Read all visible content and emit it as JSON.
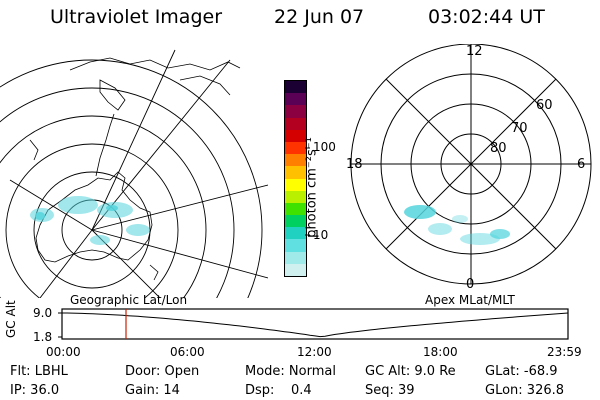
{
  "header": {
    "instrument": "Ultraviolet Imager",
    "date": "22 Jun 07",
    "time": "03:02:44 UT"
  },
  "colorbar": {
    "unit_label": "photon cm⁻²s⁻¹",
    "ticks": [
      "100",
      "10"
    ],
    "colors": [
      "#1a0033",
      "#5a0055",
      "#8b0040",
      "#b30020",
      "#d40000",
      "#ff3300",
      "#ff8000",
      "#ffc000",
      "#ffff00",
      "#b8f000",
      "#40e000",
      "#00d060",
      "#20d0c0",
      "#60e0e0",
      "#a0eaea",
      "#d0f0f0"
    ]
  },
  "geo_panel": {
    "label": "Geographic Lat/Lon"
  },
  "polar_panel": {
    "label": "Apex MLat/MLT",
    "mlt_labels": {
      "top": "12",
      "left": "18",
      "right": "6",
      "bottom": "0"
    },
    "mlat_labels": [
      "60",
      "70",
      "80"
    ]
  },
  "altitude_plot": {
    "ylabel": "GC Alt",
    "y_ticks": [
      "9.0",
      "1.8"
    ],
    "x_ticks": [
      "00:00",
      "06:00",
      "12:00",
      "18:00",
      "23:59"
    ],
    "current_marker": "03:02"
  },
  "status": {
    "row1": [
      "Flt: LBHL",
      "Door: Open",
      "Mode: Normal",
      "GC Alt: 9.0 Re",
      "GLat: -68.9"
    ],
    "row2": [
      "IP: 36.0",
      "Gain: 14",
      "Dsp:    0.4",
      "Seq: 39",
      "GLon: 326.8"
    ]
  },
  "accent_colors": {
    "marker": "#cc2200",
    "aurora": "#55d5dd"
  }
}
